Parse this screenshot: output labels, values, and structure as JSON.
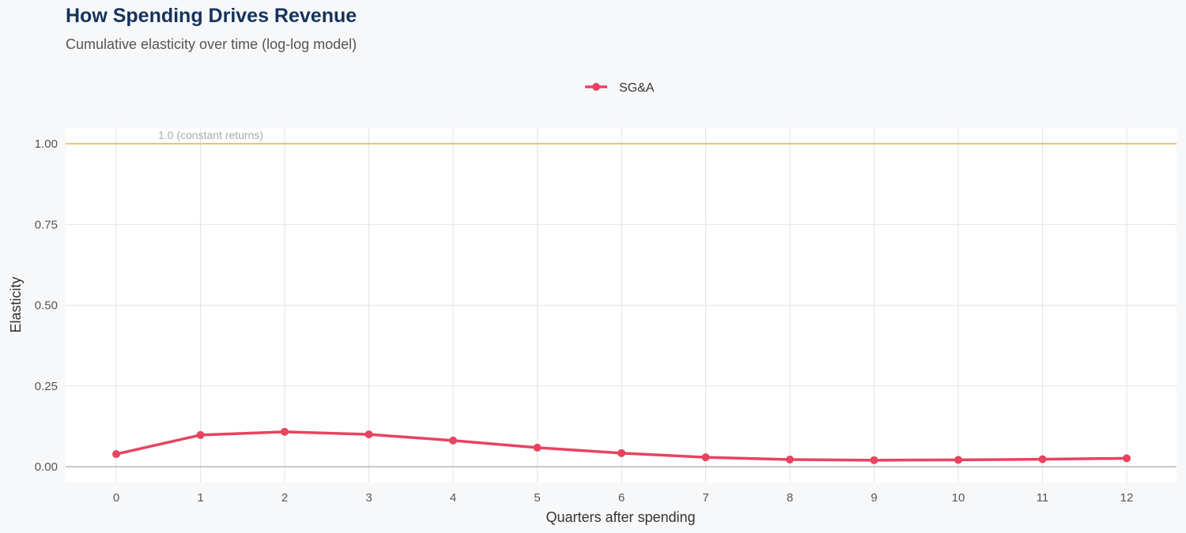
{
  "chart_data": {
    "type": "line",
    "title": "How Spending Drives Revenue",
    "subtitle": "Cumulative elasticity over time (log-log model)",
    "xlabel": "Quarters after spending",
    "ylabel": "Elasticity",
    "x": [
      0,
      1,
      2,
      3,
      4,
      5,
      6,
      7,
      8,
      9,
      10,
      11,
      12
    ],
    "xticks": [
      "0",
      "1",
      "2",
      "3",
      "4",
      "5",
      "6",
      "7",
      "8",
      "9",
      "10",
      "11",
      "12"
    ],
    "yticks": [
      "0.00",
      "0.25",
      "0.50",
      "0.75",
      "1.00"
    ],
    "ylim": [
      0,
      1
    ],
    "grid": true,
    "legend_position": "top",
    "series": [
      {
        "name": "SG&A",
        "color": "#e8435f",
        "values": [
          0.039,
          0.098,
          0.108,
          0.1,
          0.081,
          0.059,
          0.042,
          0.029,
          0.022,
          0.02,
          0.021,
          0.023,
          0.026
        ]
      }
    ],
    "reference_line": {
      "y": 1.0,
      "label": "1.0 (constant returns)",
      "color": "#f2c55c"
    }
  }
}
